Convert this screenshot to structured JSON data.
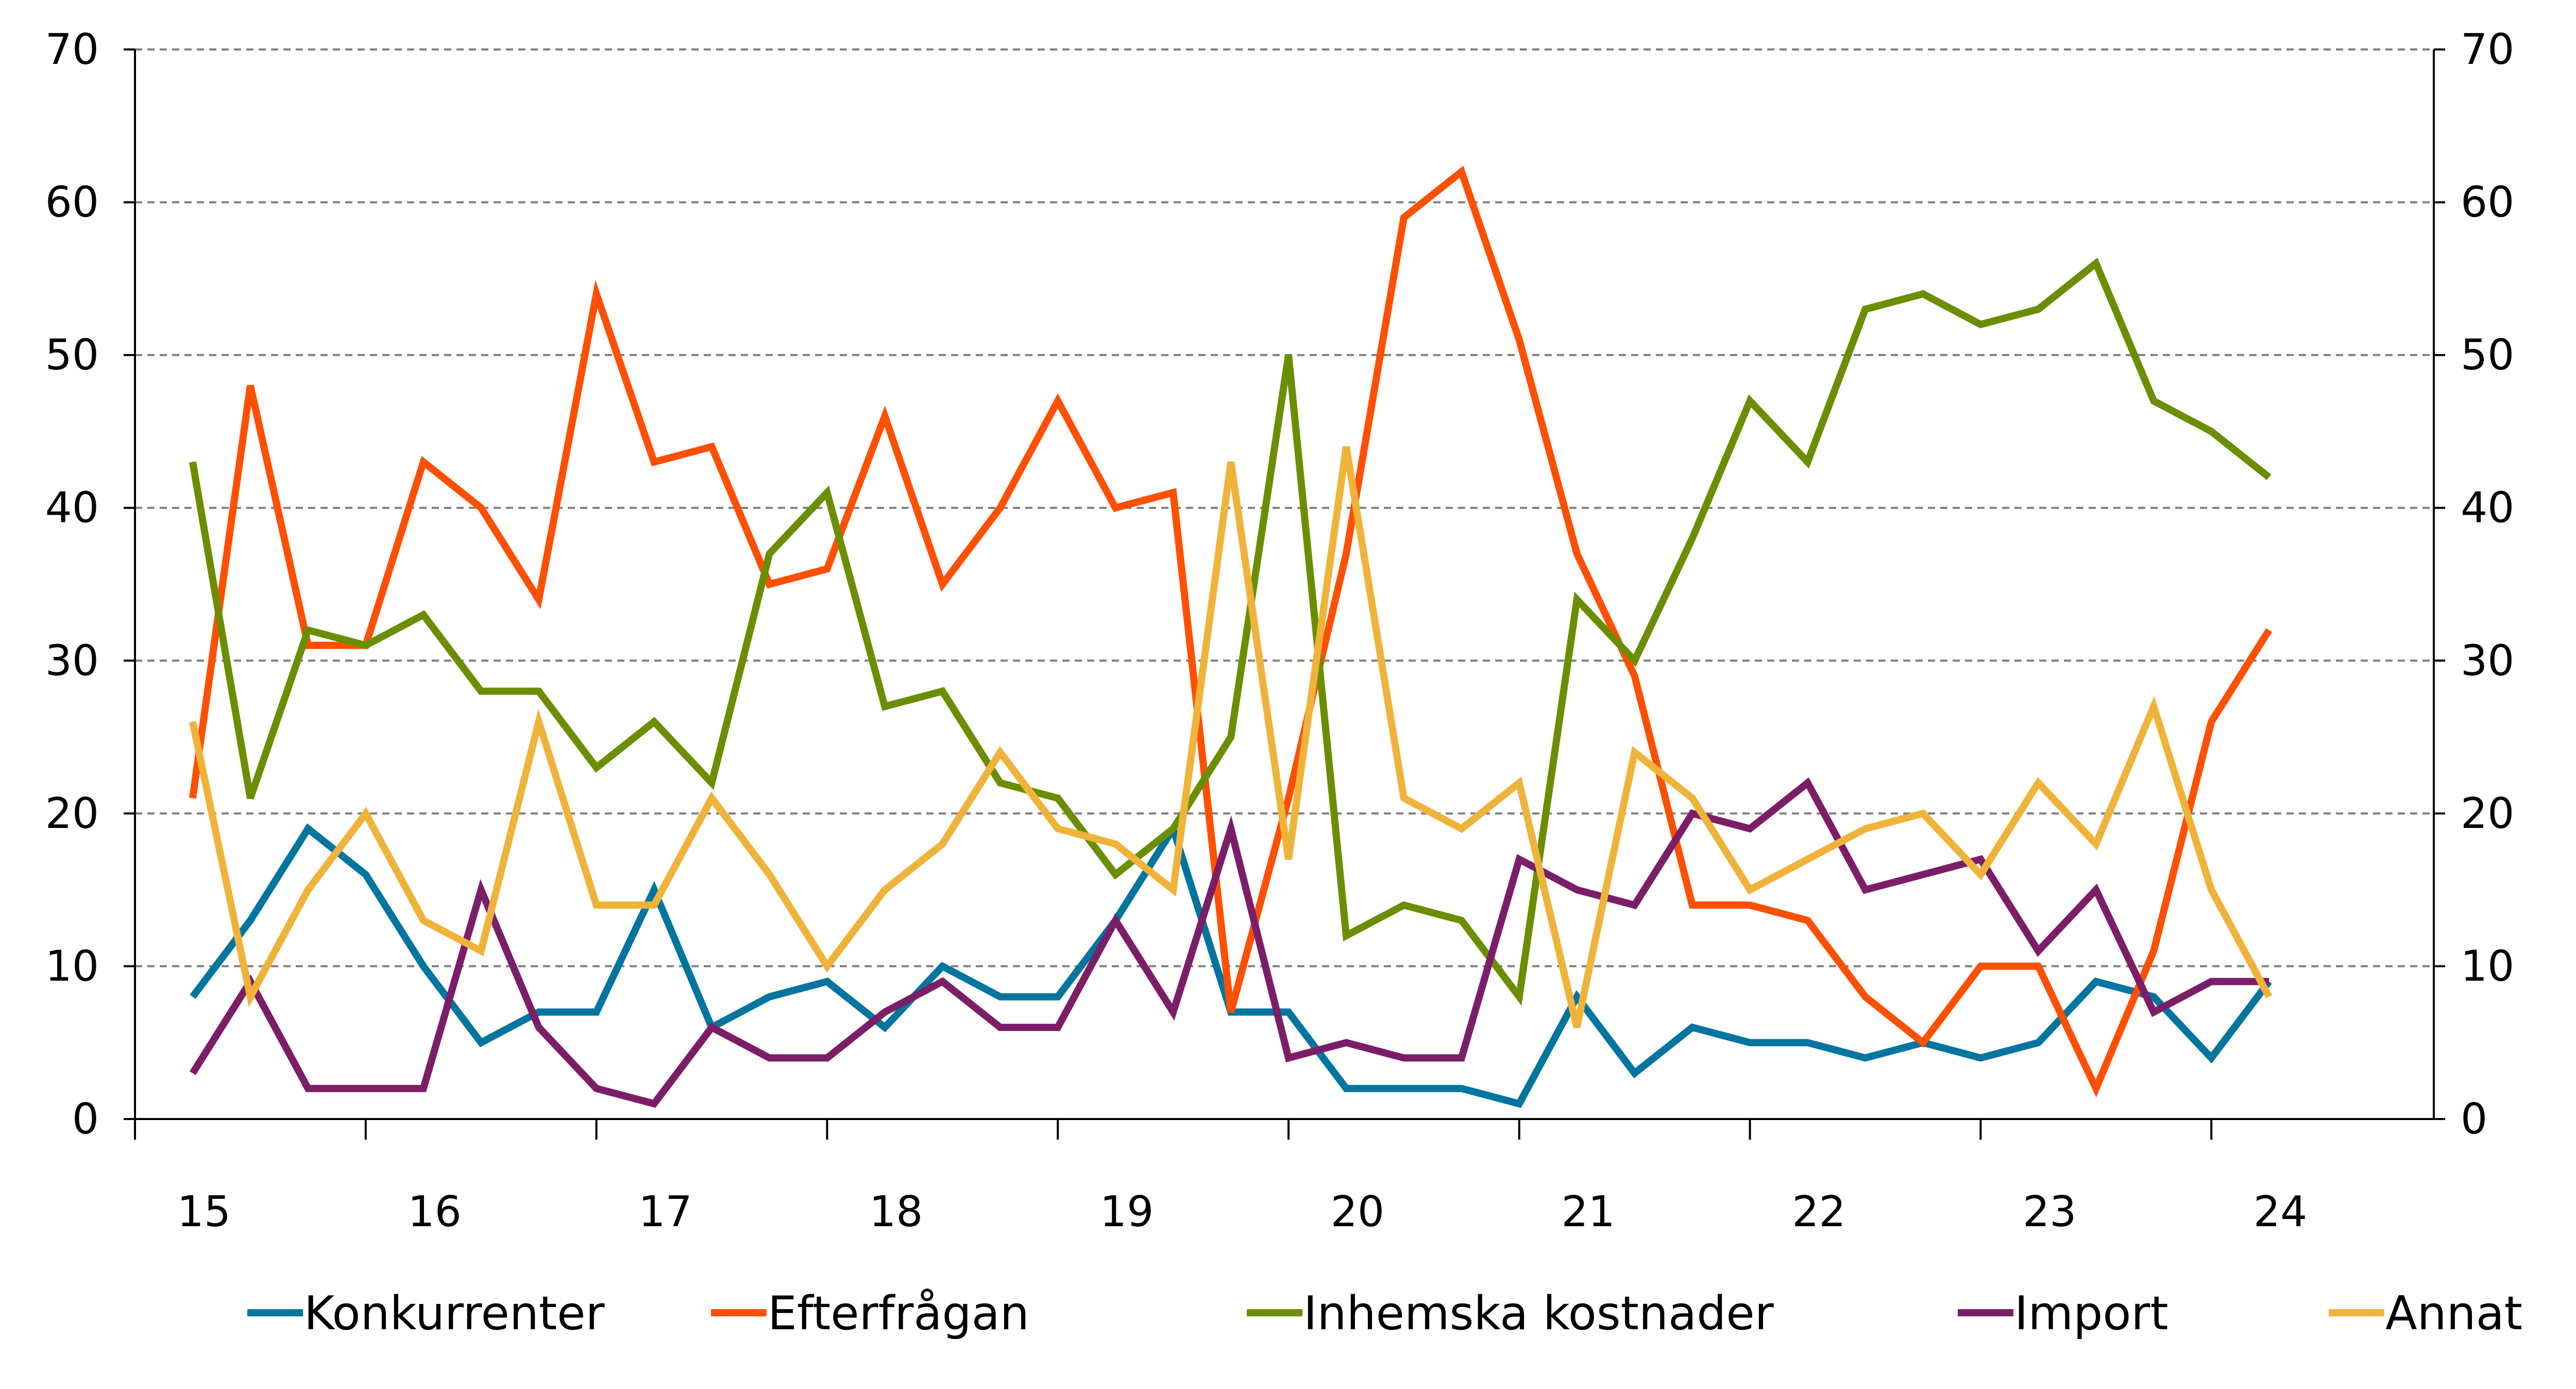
{
  "chart_data": {
    "type": "line",
    "title": "",
    "xlabel": "",
    "ylabel": "",
    "ylim": [
      0,
      70
    ],
    "yticks": [
      0,
      10,
      20,
      30,
      40,
      50,
      60,
      70
    ],
    "secondary_yticks": [
      0,
      10,
      20,
      30,
      40,
      50,
      60,
      70
    ],
    "x_year_labels": [
      "15",
      "16",
      "17",
      "18",
      "19",
      "20",
      "21",
      "22",
      "23",
      "24"
    ],
    "points_per_year": 4,
    "first_point_index": 1,
    "grid": true,
    "legend_position": "bottom",
    "series": [
      {
        "name": "Konkurrenter",
        "color": "#00759f",
        "values": [
          8,
          13,
          19,
          16,
          10,
          5,
          7,
          7,
          15,
          6,
          8,
          9,
          6,
          10,
          8,
          8,
          13,
          19,
          7,
          7,
          2,
          2,
          2,
          1,
          8,
          3,
          6,
          5,
          5,
          4,
          5,
          4,
          5,
          9,
          8,
          4,
          9
        ]
      },
      {
        "name": "Efterfrågan",
        "color": "#ff4f00",
        "values": [
          21,
          48,
          31,
          31,
          43,
          40,
          34,
          54,
          43,
          44,
          35,
          36,
          46,
          35,
          40,
          47,
          40,
          41,
          7,
          21,
          37,
          59,
          62,
          51,
          37,
          29,
          14,
          14,
          13,
          8,
          5,
          10,
          10,
          2,
          11,
          26,
          32
        ]
      },
      {
        "name": "Inhemska kostnader",
        "color": "#6b8e00",
        "values": [
          43,
          21,
          32,
          31,
          33,
          28,
          28,
          23,
          26,
          22,
          37,
          41,
          27,
          28,
          22,
          21,
          16,
          19,
          25,
          50,
          12,
          14,
          13,
          8,
          34,
          30,
          38,
          47,
          43,
          53,
          54,
          52,
          53,
          56,
          47,
          45,
          42
        ]
      },
      {
        "name": "Import",
        "color": "#7b1e67",
        "values": [
          3,
          9,
          2,
          2,
          2,
          15,
          6,
          2,
          1,
          6,
          4,
          4,
          7,
          9,
          6,
          6,
          13,
          7,
          19,
          4,
          5,
          4,
          4,
          17,
          15,
          14,
          20,
          19,
          22,
          15,
          16,
          17,
          11,
          15,
          7,
          9,
          9
        ]
      },
      {
        "name": "Annat",
        "color": "#f0b33a",
        "values": [
          26,
          8,
          15,
          20,
          13,
          11,
          26,
          14,
          14,
          21,
          16,
          10,
          15,
          18,
          24,
          19,
          18,
          15,
          43,
          17,
          44,
          21,
          19,
          22,
          6,
          24,
          21,
          15,
          17,
          19,
          20,
          16,
          22,
          18,
          27,
          15,
          8
        ]
      }
    ]
  }
}
